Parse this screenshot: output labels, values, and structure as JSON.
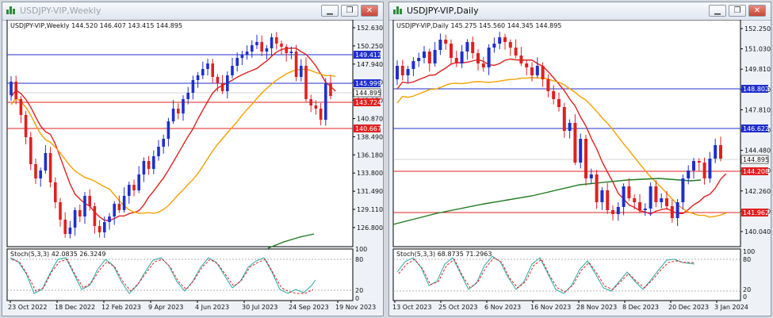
{
  "windows": [
    {
      "id": "weekly",
      "title": "USDJPY-VIP,Weekly",
      "chart_header": "USDJPY-VIP,Weekly  144.520 146.407 143.415 144.895",
      "stoch_header": "Stoch(5,3,3) 42.0835 26.3249",
      "stoch_levels": [
        "100",
        "80",
        "20",
        "0"
      ],
      "x_labels": [
        "23 Oct 2022",
        "18 Dec 2022",
        "12 Feb 2023",
        "9 Apr 2023",
        "4 Jun 2023",
        "30 Jul 2023",
        "24 Sep 2023",
        "19 Nov 2023"
      ],
      "y_labels": [
        "152.630",
        "150.250",
        "147.940",
        "145.560",
        "143.250",
        "140.870",
        "138.490",
        "136.180",
        "133.800",
        "131.490",
        "129.110",
        "126.800"
      ],
      "tags": [
        {
          "text": "149.412",
          "color": "#1f2fcc"
        },
        {
          "text": "145.999",
          "color": "#1f2fcc"
        },
        {
          "text": "144.895",
          "color": "#000000"
        },
        {
          "text": "143.724",
          "color": "#e02020"
        },
        {
          "text": "140.667",
          "color": "#e02020"
        }
      ]
    },
    {
      "id": "daily",
      "title": "USDJPY-VIP,Daily",
      "chart_header": "USDJPY-VIP,Daily  145.275 145.560 144.345 144.895",
      "stoch_header": "Stoch(5,3,3) 68.8735 71.2963",
      "stoch_levels": [
        "100",
        "80",
        "20",
        "0"
      ],
      "x_labels": [
        "13 Oct 2023",
        "25 Oct 2023",
        "6 Nov 2023",
        "16 Nov 2023",
        "28 Nov 2023",
        "8 Dec 2023",
        "20 Dec 2023",
        "3 Jan 2024"
      ],
      "y_labels": [
        "152.250",
        "151.030",
        "149.810",
        "148.590",
        "147.810",
        "145.590",
        "144.480",
        "143.370",
        "142.260",
        "141.150",
        "140.040"
      ],
      "tags": [
        {
          "text": "148.802",
          "color": "#1f2fcc"
        },
        {
          "text": "146.622",
          "color": "#1f2fcc"
        },
        {
          "text": "144.895",
          "color": "#000000"
        },
        {
          "text": "144.208",
          "color": "#e02020"
        },
        {
          "text": "141.962",
          "color": "#e02020"
        }
      ]
    }
  ],
  "colors": {
    "bull": "#1f2fcc",
    "bear": "#e02020",
    "ma_fast": "#e02020",
    "ma_slow": "#f5a000",
    "ma_long": "#1e7a1e",
    "stoch_main": "#2ba8a8",
    "stoch_signal": "#e02020"
  }
}
